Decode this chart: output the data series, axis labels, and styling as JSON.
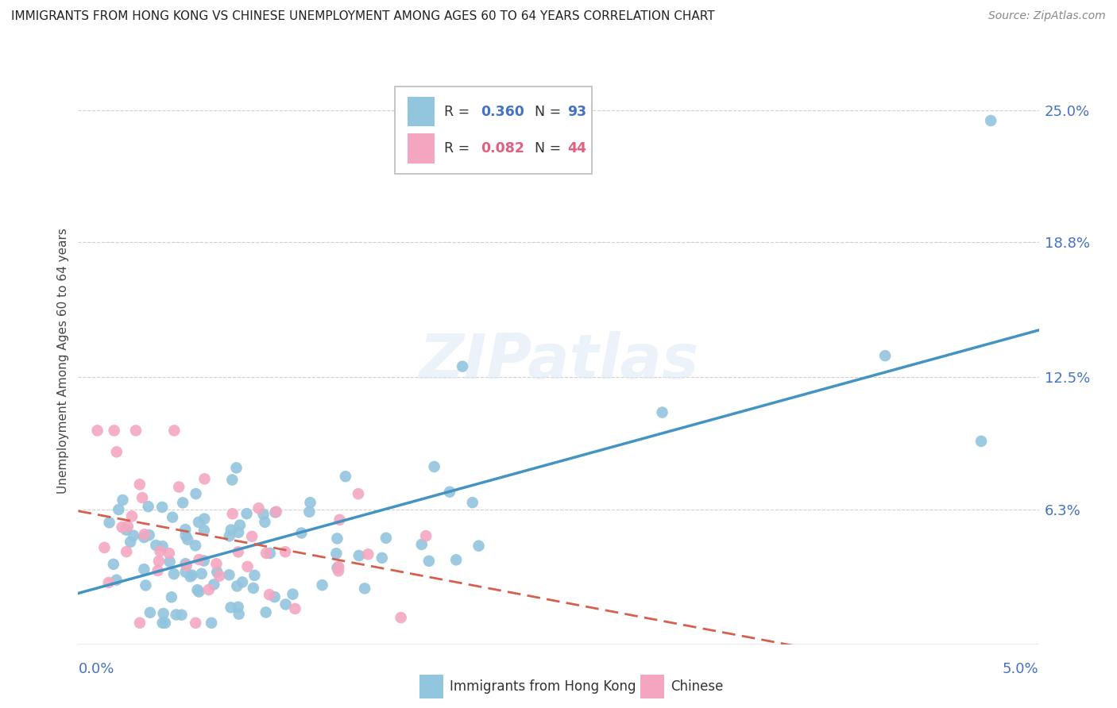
{
  "title": "IMMIGRANTS FROM HONG KONG VS CHINESE UNEMPLOYMENT AMONG AGES 60 TO 64 YEARS CORRELATION CHART",
  "source": "Source: ZipAtlas.com",
  "xlim": [
    0.0,
    0.05
  ],
  "ylim": [
    0.0,
    0.265
  ],
  "ytick_vals": [
    0.063,
    0.125,
    0.188,
    0.25
  ],
  "ytick_labels": [
    "6.3%",
    "12.5%",
    "18.8%",
    "25.0%"
  ],
  "blue_R": 0.36,
  "blue_N": 93,
  "pink_R": 0.082,
  "pink_N": 44,
  "blue_color": "#92c5de",
  "pink_color": "#f4a6c0",
  "blue_line_color": "#4393c3",
  "pink_line_color": "#d6604d",
  "blue_text_color": "#4472c4",
  "pink_text_color": "#e06080",
  "legend_label_blue": "Immigrants from Hong Kong",
  "legend_label_pink": "Chinese",
  "watermark": "ZIPatlas",
  "ylabel": "Unemployment Among Ages 60 to 64 years",
  "title_fontsize": 11,
  "source_fontsize": 10,
  "axis_label_fontsize": 13,
  "ylabel_fontsize": 11
}
